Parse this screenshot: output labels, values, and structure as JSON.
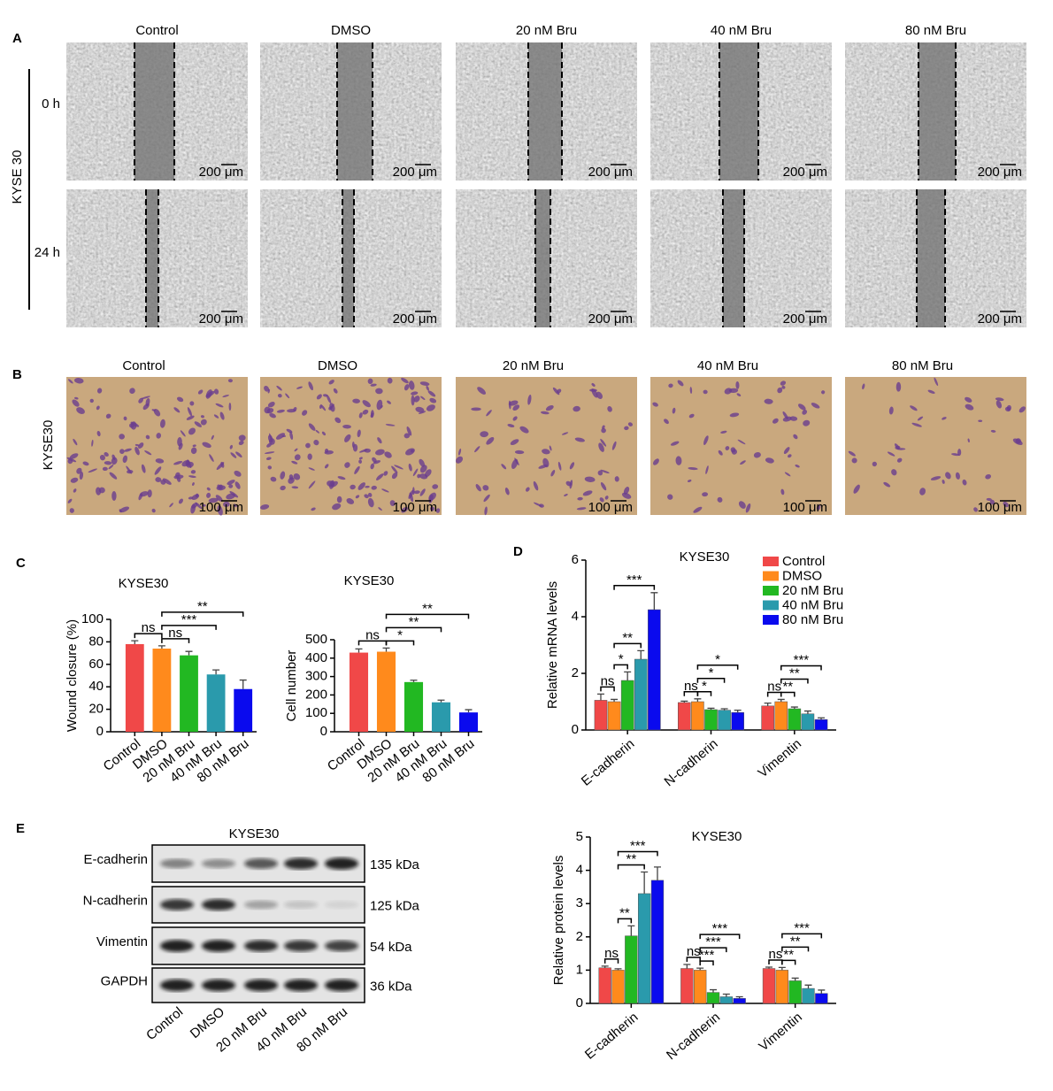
{
  "panels": {
    "A": {
      "label": "A",
      "conditions": [
        "Control",
        "DMSO",
        "20 nM Bru",
        "40 nM Bru",
        "80 nM Bru"
      ],
      "times": [
        "0 h",
        "24 h"
      ],
      "cell_line": "KYSE 30",
      "scale_bar": "200 μm"
    },
    "B": {
      "label": "B",
      "conditions": [
        "Control",
        "DMSO",
        "20 nM Bru",
        "40 nM Bru",
        "80 nM Bru"
      ],
      "cell_line": "KYSE30",
      "scale_bar": "100 μm"
    },
    "C": {
      "label": "C"
    },
    "D": {
      "label": "D"
    },
    "E": {
      "label": "E",
      "title": "KYSE30",
      "proteins": [
        "E-cadherin",
        "N-cadherin",
        "Vimentin",
        "GAPDH"
      ],
      "sizes": [
        "135 kDa",
        "125 kDa",
        "54 kDa",
        "36 kDa"
      ],
      "lanes": [
        "Control",
        "DMSO",
        "20 nM Bru",
        "40 nM Bru",
        "80 nM Bru"
      ]
    }
  },
  "chart_data": [
    {
      "type": "bar",
      "title": "KYSE30",
      "ylabel": "Wound closure (%)",
      "categories": [
        "Control",
        "DMSO",
        "20 nM Bru",
        "40 nM Bru",
        "80 nM Bru"
      ],
      "values": [
        78,
        74,
        68,
        51,
        38
      ],
      "errors": [
        3,
        2.5,
        3.5,
        4,
        8
      ],
      "colors": [
        "#f04848",
        "#ff8a1c",
        "#22b822",
        "#2a9aac",
        "#0a0aee"
      ],
      "ylim": [
        0,
        100
      ],
      "yticks": [
        0,
        20,
        40,
        60,
        80,
        100
      ],
      "annotations": [
        {
          "label": "ns",
          "between": [
            0,
            1
          ]
        },
        {
          "label": "ns",
          "between": [
            1,
            2
          ]
        },
        {
          "label": "***",
          "between": [
            1,
            3
          ]
        },
        {
          "label": "**",
          "between": [
            1,
            4
          ]
        }
      ]
    },
    {
      "type": "bar",
      "title": "KYSE30",
      "ylabel": "Cell number",
      "categories": [
        "Control",
        "DMSO",
        "20 nM Bru",
        "40 nM Bru",
        "80 nM Bru"
      ],
      "values": [
        430,
        435,
        270,
        160,
        105
      ],
      "errors": [
        20,
        20,
        10,
        12,
        15
      ],
      "colors": [
        "#f04848",
        "#ff8a1c",
        "#22b822",
        "#2a9aac",
        "#0a0aee"
      ],
      "ylim": [
        0,
        500
      ],
      "yticks": [
        0,
        100,
        200,
        300,
        400,
        500
      ],
      "annotations": [
        {
          "label": "ns",
          "between": [
            0,
            1
          ]
        },
        {
          "label": "*",
          "between": [
            1,
            2
          ]
        },
        {
          "label": "**",
          "between": [
            1,
            3
          ]
        },
        {
          "label": "**",
          "between": [
            1,
            4
          ]
        }
      ]
    },
    {
      "type": "grouped_bar",
      "title": "KYSE30",
      "ylabel": "Relative mRNA levels",
      "categories": [
        "E-cadherin",
        "N-cadherin",
        "Vimentin"
      ],
      "series": [
        {
          "name": "Control",
          "color": "#f04848",
          "values": [
            1.05,
            0.97,
            0.85
          ],
          "errors": [
            0.22,
            0.05,
            0.1
          ]
        },
        {
          "name": "DMSO",
          "color": "#ff8a1c",
          "values": [
            1.0,
            1.0,
            1.0
          ],
          "errors": [
            0.08,
            0.1,
            0.08
          ]
        },
        {
          "name": "20 nM Bru",
          "color": "#22b822",
          "values": [
            1.75,
            0.72,
            0.75
          ],
          "errors": [
            0.3,
            0.05,
            0.06
          ]
        },
        {
          "name": "40 nM Bru",
          "color": "#2a9aac",
          "values": [
            2.5,
            0.7,
            0.57
          ],
          "errors": [
            0.3,
            0.05,
            0.1
          ]
        },
        {
          "name": "80 nM Bru",
          "color": "#0a0aee",
          "values": [
            4.25,
            0.62,
            0.37
          ],
          "errors": [
            0.6,
            0.08,
            0.06
          ]
        }
      ],
      "ylim": [
        0,
        6
      ],
      "yticks": [
        0,
        2,
        4,
        6
      ],
      "legend": "upper right",
      "annotations": [
        {
          "label": "ns",
          "group": 0,
          "between": [
            0,
            1
          ]
        },
        {
          "label": "*",
          "group": 0,
          "between": [
            1,
            2
          ]
        },
        {
          "label": "**",
          "group": 0,
          "between": [
            1,
            3
          ]
        },
        {
          "label": "***",
          "group": 0,
          "between": [
            1,
            4
          ]
        },
        {
          "label": "ns",
          "group": 1,
          "between": [
            0,
            1
          ]
        },
        {
          "label": "*",
          "group": 1,
          "between": [
            1,
            2
          ]
        },
        {
          "label": "*",
          "group": 1,
          "between": [
            1,
            3
          ]
        },
        {
          "label": "*",
          "group": 1,
          "between": [
            1,
            4
          ]
        },
        {
          "label": "ns",
          "group": 2,
          "between": [
            0,
            1
          ]
        },
        {
          "label": "**",
          "group": 2,
          "between": [
            1,
            2
          ]
        },
        {
          "label": "**",
          "group": 2,
          "between": [
            1,
            3
          ]
        },
        {
          "label": "***",
          "group": 2,
          "between": [
            1,
            4
          ]
        }
      ]
    },
    {
      "type": "grouped_bar",
      "title": "KYSE30",
      "ylabel": "Relative protein levels",
      "categories": [
        "E-cadherin",
        "N-cadherin",
        "Vimentin"
      ],
      "series": [
        {
          "name": "Control",
          "color": "#f04848",
          "values": [
            1.07,
            1.05,
            1.05
          ],
          "errors": [
            0.05,
            0.12,
            0.04
          ]
        },
        {
          "name": "DMSO",
          "color": "#ff8a1c",
          "values": [
            1.0,
            1.0,
            1.0
          ],
          "errors": [
            0.04,
            0.06,
            0.08
          ]
        },
        {
          "name": "20 nM Bru",
          "color": "#22b822",
          "values": [
            2.03,
            0.33,
            0.68
          ],
          "errors": [
            0.3,
            0.08,
            0.08
          ]
        },
        {
          "name": "40 nM Bru",
          "color": "#2a9aac",
          "values": [
            3.3,
            0.2,
            0.45
          ],
          "errors": [
            0.65,
            0.08,
            0.1
          ]
        },
        {
          "name": "80 nM Bru",
          "color": "#0a0aee",
          "values": [
            3.7,
            0.15,
            0.3
          ],
          "errors": [
            0.4,
            0.05,
            0.1
          ]
        }
      ],
      "ylim": [
        0,
        5
      ],
      "yticks": [
        0,
        1,
        2,
        3,
        4,
        5
      ],
      "annotations": [
        {
          "label": "ns",
          "group": 0,
          "between": [
            0,
            1
          ]
        },
        {
          "label": "**",
          "group": 0,
          "between": [
            1,
            2
          ]
        },
        {
          "label": "**",
          "group": 0,
          "between": [
            1,
            3
          ]
        },
        {
          "label": "***",
          "group": 0,
          "between": [
            1,
            4
          ]
        },
        {
          "label": "ns",
          "group": 1,
          "between": [
            0,
            1
          ]
        },
        {
          "label": "***",
          "group": 1,
          "between": [
            1,
            2
          ]
        },
        {
          "label": "***",
          "group": 1,
          "between": [
            1,
            3
          ]
        },
        {
          "label": "***",
          "group": 1,
          "between": [
            1,
            4
          ]
        },
        {
          "label": "ns",
          "group": 2,
          "between": [
            0,
            1
          ]
        },
        {
          "label": "**",
          "group": 2,
          "between": [
            1,
            2
          ]
        },
        {
          "label": "**",
          "group": 2,
          "between": [
            1,
            3
          ]
        },
        {
          "label": "***",
          "group": 2,
          "between": [
            1,
            4
          ]
        }
      ]
    }
  ]
}
